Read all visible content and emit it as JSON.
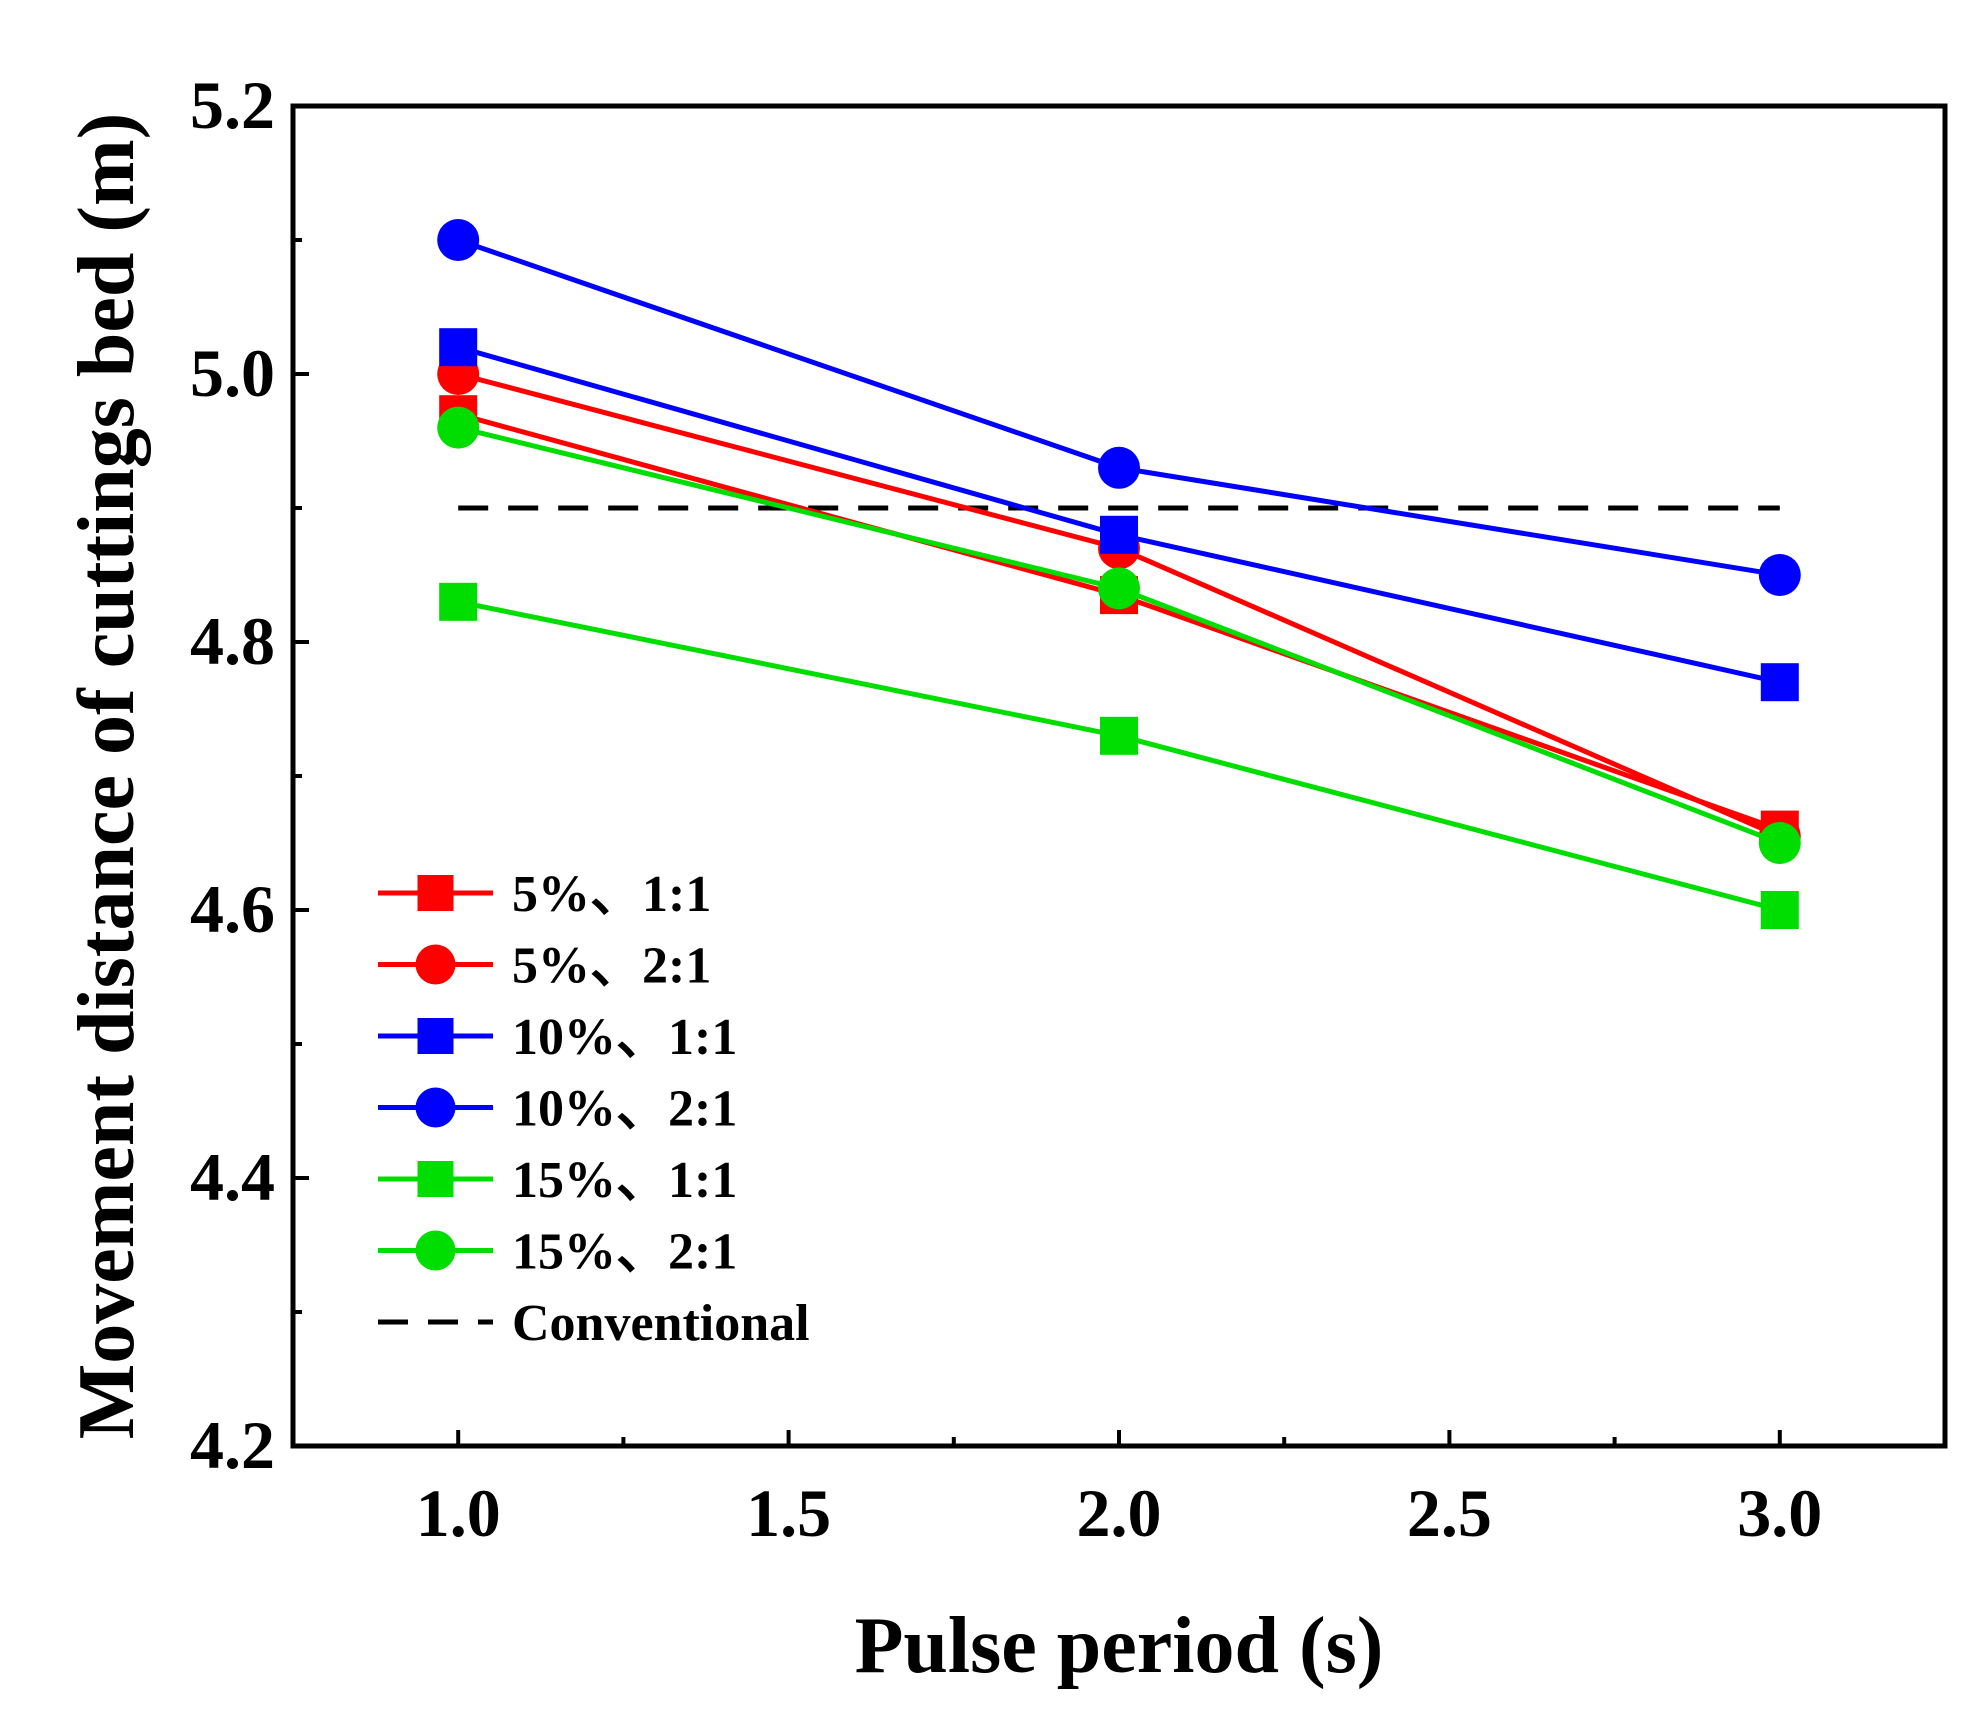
{
  "chart_data": {
    "type": "line",
    "title": "",
    "xlabel": "Pulse period (s)",
    "ylabel": "Movement distance of cuttings bed (m)",
    "xlim": [
      0.75,
      3.25
    ],
    "ylim": [
      4.2,
      5.2
    ],
    "xticks": [
      1.0,
      1.5,
      2.0,
      2.5,
      3.0
    ],
    "xtick_labels": [
      "1.0",
      "1.5",
      "2.0",
      "2.5",
      "3.0"
    ],
    "yticks": [
      4.2,
      4.4,
      4.6,
      4.8,
      5.0,
      5.2
    ],
    "ytick_labels": [
      "4.2",
      "4.4",
      "4.6",
      "4.8",
      "5.0",
      "5.2"
    ],
    "grid": false,
    "legend_position": "lower-left",
    "x": [
      1.0,
      2.0,
      3.0
    ],
    "series": [
      {
        "name": "5%、1:1",
        "values": [
          4.97,
          4.835,
          4.66
        ],
        "color": "#ff0000",
        "marker": "square"
      },
      {
        "name": "5%、2:1",
        "values": [
          5.0,
          4.87,
          4.655
        ],
        "color": "#ff0000",
        "marker": "circle"
      },
      {
        "name": "10%、1:1",
        "values": [
          5.02,
          4.88,
          4.77
        ],
        "color": "#0000ff",
        "marker": "square"
      },
      {
        "name": "10%、2:1",
        "values": [
          5.1,
          4.93,
          4.85
        ],
        "color": "#0000ff",
        "marker": "circle"
      },
      {
        "name": "15%、1:1",
        "values": [
          4.83,
          4.73,
          4.6
        ],
        "color": "#00dd00",
        "marker": "square"
      },
      {
        "name": "15%、2:1",
        "values": [
          4.96,
          4.84,
          4.65
        ],
        "color": "#00dd00",
        "marker": "circle"
      }
    ],
    "reference_line": {
      "name": "Conventional",
      "value": 4.9,
      "x_range": [
        1.0,
        3.0
      ],
      "color": "#000000",
      "style": "dashed"
    }
  }
}
